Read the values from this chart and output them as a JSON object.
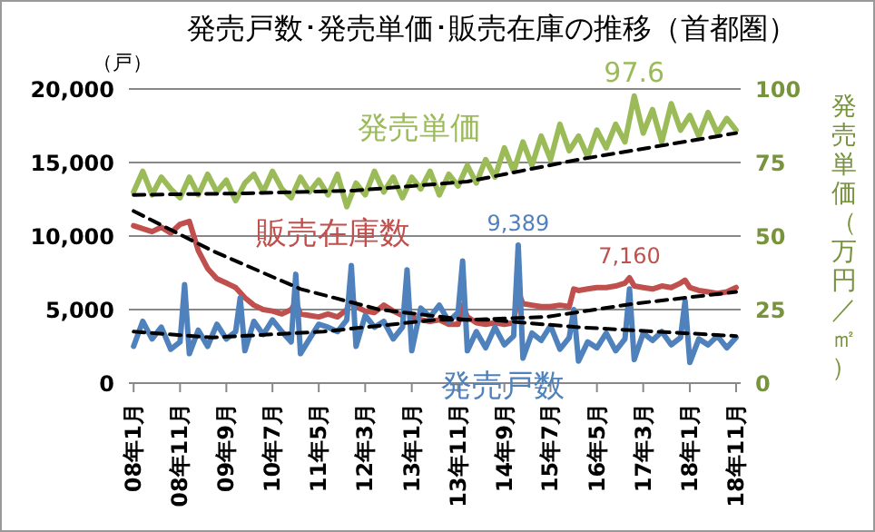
{
  "chart_data": {
    "type": "line",
    "title": "発売戸数･発売単価･販売在庫の推移（首都圏）",
    "ylabel": "（戸）",
    "y2label": "発売単価（万円／㎡）",
    "xlim": [
      "2007-12",
      "2018-12"
    ],
    "xticks": [
      {
        "value": "2008-01",
        "label": "08年1月"
      },
      {
        "value": "2008-11",
        "label": "08年11月"
      },
      {
        "value": "2009-09",
        "label": "09年9月"
      },
      {
        "value": "2010-07",
        "label": "10年7月"
      },
      {
        "value": "2011-05",
        "label": "11年5月"
      },
      {
        "value": "2012-03",
        "label": "12年3月"
      },
      {
        "value": "2013-01",
        "label": "13年1月"
      },
      {
        "value": "2013-11",
        "label": "13年11月"
      },
      {
        "value": "2014-09",
        "label": "14年9月"
      },
      {
        "value": "2015-07",
        "label": "15年7月"
      },
      {
        "value": "2016-05",
        "label": "16年5月"
      },
      {
        "value": "2017-03",
        "label": "17年3月"
      },
      {
        "value": "2018-01",
        "label": "18年1月"
      },
      {
        "value": "2018-11",
        "label": "18年11月"
      }
    ],
    "ylim": [
      0,
      20000
    ],
    "yticks": [
      0,
      {
        "value": 5000,
        "label": "5,000"
      },
      {
        "value": 10000,
        "label": "10,000"
      },
      {
        "value": 15000,
        "label": "15,000"
      },
      {
        "value": 20000,
        "label": "20,000"
      }
    ],
    "y2lim": [
      0,
      100
    ],
    "y2ticks": [
      0,
      25,
      50,
      75,
      100
    ],
    "grid": "y",
    "legend": false,
    "marker": "none",
    "line_style": "solid",
    "series": [
      {
        "name": "発売単価",
        "color": "#9bbb59",
        "axis": "y2",
        "x": [
          "2008-01",
          "2008-03",
          "2008-05",
          "2008-07",
          "2008-09",
          "2008-11",
          "2009-01",
          "2009-03",
          "2009-05",
          "2009-07",
          "2009-09",
          "2009-11",
          "2010-01",
          "2010-03",
          "2010-05",
          "2010-07",
          "2010-09",
          "2010-11",
          "2011-01",
          "2011-03",
          "2011-05",
          "2011-07",
          "2011-09",
          "2011-11",
          "2012-01",
          "2012-03",
          "2012-05",
          "2012-07",
          "2012-09",
          "2012-11",
          "2013-01",
          "2013-03",
          "2013-05",
          "2013-07",
          "2013-09",
          "2013-11",
          "2014-01",
          "2014-03",
          "2014-05",
          "2014-07",
          "2014-09",
          "2014-11",
          "2015-01",
          "2015-03",
          "2015-05",
          "2015-07",
          "2015-09",
          "2015-11",
          "2016-01",
          "2016-03",
          "2016-05",
          "2016-07",
          "2016-09",
          "2016-11",
          "2017-01",
          "2017-03",
          "2017-05",
          "2017-07",
          "2017-09",
          "2017-11",
          "2018-01",
          "2018-03",
          "2018-05",
          "2018-07",
          "2018-09",
          "2018-11"
        ],
        "values": [
          65,
          72,
          64,
          70,
          66,
          63,
          70,
          64,
          71,
          65,
          69,
          62,
          68,
          71,
          65,
          72,
          66,
          63,
          70,
          65,
          69,
          64,
          71,
          60,
          68,
          64,
          72,
          65,
          70,
          63,
          70,
          66,
          72,
          64,
          71,
          67,
          74,
          68,
          76,
          70,
          80,
          72,
          82,
          74,
          84,
          76,
          88,
          79,
          84,
          77,
          86,
          80,
          88,
          82,
          97.6,
          85,
          93,
          82,
          95,
          86,
          91,
          84,
          92,
          85,
          90,
          86
        ],
        "value_labels": [
          null,
          null,
          null,
          null,
          null,
          null,
          null,
          null,
          null,
          null,
          null,
          null,
          null,
          null,
          null,
          null,
          null,
          null,
          null,
          null,
          null,
          null,
          null,
          null,
          null,
          null,
          null,
          null,
          null,
          null,
          null,
          null,
          null,
          null,
          null,
          null,
          null,
          null,
          null,
          null,
          null,
          null,
          null,
          null,
          null,
          null,
          null,
          null,
          null,
          null,
          null,
          null,
          null,
          null,
          "97.6",
          null,
          null,
          null,
          null,
          null,
          null,
          null,
          null,
          null,
          null,
          null
        ]
      },
      {
        "name": "販売在庫数",
        "color": "#c0504d",
        "x": [
          "2008-01",
          "2008-03",
          "2008-05",
          "2008-07",
          "2008-09",
          "2008-11",
          "2009-01",
          "2009-03",
          "2009-05",
          "2009-07",
          "2009-09",
          "2009-11",
          "2010-01",
          "2010-03",
          "2010-05",
          "2010-07",
          "2010-09",
          "2010-11",
          "2010-12",
          "2011-01",
          "2011-03",
          "2011-05",
          "2011-07",
          "2011-09",
          "2011-11",
          "2011-12",
          "2012-01",
          "2012-03",
          "2012-05",
          "2012-07",
          "2012-09",
          "2012-11",
          "2012-12",
          "2013-01",
          "2013-03",
          "2013-05",
          "2013-07",
          "2013-09",
          "2013-11",
          "2013-12",
          "2014-01",
          "2014-03",
          "2014-05",
          "2014-07",
          "2014-09",
          "2014-11",
          "2014-12",
          "2015-01",
          "2015-03",
          "2015-05",
          "2015-07",
          "2015-09",
          "2015-11",
          "2015-12",
          "2016-01",
          "2016-03",
          "2016-05",
          "2016-07",
          "2016-09",
          "2016-11",
          "2016-12",
          "2017-01",
          "2017-03",
          "2017-05",
          "2017-07",
          "2017-09",
          "2017-11",
          "2017-12",
          "2018-01",
          "2018-03",
          "2018-05",
          "2018-07",
          "2018-09",
          "2018-11"
        ],
        "values": [
          10700,
          10500,
          10300,
          10600,
          10200,
          10800,
          11000,
          9000,
          7800,
          7100,
          6800,
          6500,
          5800,
          5300,
          5000,
          4900,
          4700,
          5000,
          5500,
          4700,
          4600,
          4500,
          4700,
          4500,
          5000,
          5900,
          5200,
          4900,
          4800,
          5300,
          4900,
          4600,
          5200,
          4500,
          4300,
          4200,
          4300,
          4000,
          4000,
          5300,
          4500,
          4100,
          4000,
          4100,
          4000,
          4100,
          6200,
          5400,
          5300,
          5200,
          5200,
          5300,
          5200,
          6400,
          6300,
          6400,
          6500,
          6500,
          6600,
          6800,
          7160,
          6600,
          6500,
          6400,
          6600,
          6500,
          6800,
          7000,
          6500,
          6300,
          6200,
          6100,
          6200,
          6500
        ],
        "value_labels": [
          null,
          null,
          null,
          null,
          null,
          null,
          null,
          null,
          null,
          null,
          null,
          null,
          null,
          null,
          null,
          null,
          null,
          null,
          null,
          null,
          null,
          null,
          null,
          null,
          null,
          null,
          null,
          null,
          null,
          null,
          null,
          null,
          null,
          null,
          null,
          null,
          null,
          null,
          null,
          null,
          null,
          null,
          null,
          null,
          null,
          null,
          null,
          null,
          null,
          null,
          null,
          null,
          null,
          null,
          null,
          null,
          null,
          null,
          null,
          null,
          "7,160",
          null,
          null,
          null,
          null,
          null,
          null,
          null,
          null,
          null,
          null,
          null,
          null,
          null
        ]
      },
      {
        "name": "発売戸数",
        "color": "#4f81bd",
        "x": [
          "2008-01",
          "2008-03",
          "2008-05",
          "2008-07",
          "2008-09",
          "2008-11",
          "2008-12",
          "2009-01",
          "2009-03",
          "2009-05",
          "2009-07",
          "2009-09",
          "2009-11",
          "2009-12",
          "2010-01",
          "2010-03",
          "2010-05",
          "2010-07",
          "2010-09",
          "2010-11",
          "2010-12",
          "2011-01",
          "2011-03",
          "2011-05",
          "2011-07",
          "2011-09",
          "2011-11",
          "2011-12",
          "2012-01",
          "2012-03",
          "2012-05",
          "2012-07",
          "2012-09",
          "2012-11",
          "2012-12",
          "2013-01",
          "2013-03",
          "2013-05",
          "2013-07",
          "2013-09",
          "2013-11",
          "2013-12",
          "2014-01",
          "2014-03",
          "2014-05",
          "2014-07",
          "2014-09",
          "2014-11",
          "2014-12",
          "2015-01",
          "2015-03",
          "2015-05",
          "2015-07",
          "2015-09",
          "2015-11",
          "2015-12",
          "2016-01",
          "2016-03",
          "2016-05",
          "2016-07",
          "2016-09",
          "2016-11",
          "2016-12",
          "2017-01",
          "2017-03",
          "2017-05",
          "2017-07",
          "2017-09",
          "2017-11",
          "2017-12",
          "2018-01",
          "2018-03",
          "2018-05",
          "2018-07",
          "2018-09",
          "2018-11"
        ],
        "values": [
          2500,
          4200,
          3000,
          3800,
          2300,
          2800,
          6700,
          2000,
          3600,
          2500,
          4000,
          3000,
          3500,
          5800,
          2200,
          4200,
          3300,
          4300,
          3500,
          2800,
          7400,
          2000,
          3000,
          4000,
          3800,
          3500,
          4300,
          8000,
          2500,
          4600,
          3800,
          4200,
          3000,
          3800,
          7700,
          2200,
          5100,
          4500,
          5300,
          4200,
          4800,
          8300,
          2200,
          3500,
          2400,
          3800,
          2600,
          3200,
          9389,
          1700,
          3400,
          2900,
          3900,
          2300,
          3100,
          5000,
          1500,
          2800,
          2400,
          3400,
          2200,
          3000,
          6400,
          1600,
          3400,
          2900,
          3500,
          2600,
          3100,
          5600,
          1400,
          3000,
          2600,
          3200,
          2400,
          3100
        ],
        "value_labels": [
          null,
          null,
          null,
          null,
          null,
          null,
          null,
          null,
          null,
          null,
          null,
          null,
          null,
          null,
          null,
          null,
          null,
          null,
          null,
          null,
          null,
          null,
          null,
          null,
          null,
          null,
          null,
          null,
          null,
          null,
          null,
          null,
          null,
          null,
          null,
          null,
          null,
          null,
          null,
          null,
          null,
          null,
          null,
          null,
          null,
          null,
          null,
          null,
          "9,389",
          null,
          null,
          null,
          null,
          null,
          null,
          null,
          null,
          null,
          null,
          null,
          null,
          null,
          null,
          null,
          null,
          null,
          null,
          null,
          null,
          null,
          null,
          null,
          null,
          null,
          null,
          null
        ]
      },
      {
        "color": "#000000",
        "axis": "y2",
        "line_style": "dashed",
        "x": [
          "2008-01",
          "2010-01",
          "2012-01",
          "2014-01",
          "2016-01",
          "2018-11"
        ],
        "values": [
          64,
          64.5,
          65.5,
          68.5,
          76,
          85
        ]
      },
      {
        "color": "#000000",
        "line_style": "dashed",
        "x": [
          "2008-01",
          "2009-06",
          "2011-01",
          "2012-06",
          "2014-01",
          "2015-06",
          "2017-01",
          "2018-11"
        ],
        "values": [
          11700,
          9000,
          6400,
          5000,
          4300,
          4500,
          5400,
          6200
        ]
      },
      {
        "color": "#000000",
        "line_style": "dashed",
        "x": [
          "2008-01",
          "2009-06",
          "2011-06",
          "2013-06",
          "2014-06",
          "2016-01",
          "2018-11"
        ],
        "values": [
          3500,
          3100,
          3500,
          4300,
          4300,
          3800,
          3200
        ]
      }
    ]
  }
}
